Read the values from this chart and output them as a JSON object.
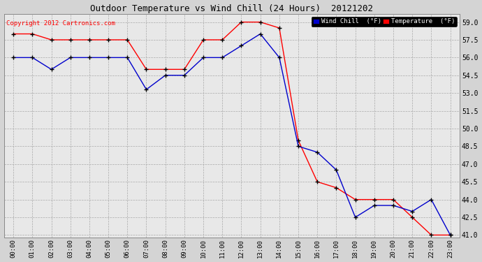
{
  "title": "Outdoor Temperature vs Wind Chill (24 Hours)  20121202",
  "copyright": "Copyright 2012 Cartronics.com",
  "x_labels": [
    "00:00",
    "01:00",
    "02:00",
    "03:00",
    "04:00",
    "05:00",
    "06:00",
    "07:00",
    "08:00",
    "09:00",
    "10:00",
    "11:00",
    "12:00",
    "13:00",
    "14:00",
    "15:00",
    "16:00",
    "17:00",
    "18:00",
    "19:00",
    "20:00",
    "21:00",
    "22:00",
    "23:00"
  ],
  "temperature": [
    58.0,
    58.0,
    57.5,
    57.5,
    57.5,
    57.5,
    57.5,
    55.0,
    55.0,
    55.0,
    57.5,
    57.5,
    59.0,
    59.0,
    58.5,
    49.0,
    45.5,
    45.0,
    44.0,
    44.0,
    44.0,
    42.5,
    41.0,
    41.0
  ],
  "wind_chill": [
    56.0,
    56.0,
    55.0,
    56.0,
    56.0,
    56.0,
    56.0,
    53.3,
    54.5,
    54.5,
    56.0,
    56.0,
    57.0,
    58.0,
    56.0,
    48.5,
    48.0,
    46.5,
    42.5,
    43.5,
    43.5,
    43.0,
    44.0,
    41.0
  ],
  "temp_color": "#ff0000",
  "wind_color": "#0000cc",
  "bg_color": "#d4d4d4",
  "plot_bg": "#e8e8e8",
  "ylim_min": 41.0,
  "ylim_max": 59.0,
  "ytick_step": 1.5,
  "legend_wind_bg": "#0000cc",
  "legend_temp_bg": "#ff0000",
  "legend_wind_label": "Wind Chill  (°F)",
  "legend_temp_label": "Temperature  (°F)"
}
